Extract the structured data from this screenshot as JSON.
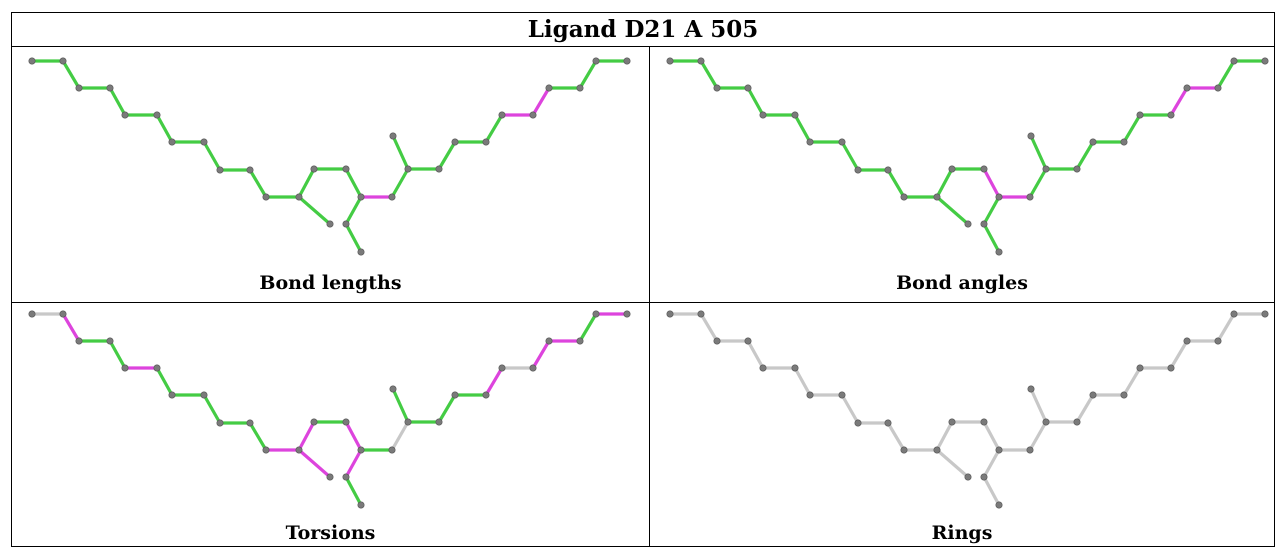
{
  "title": "Ligand D21 A 505",
  "panels": [
    {
      "caption": "Bond lengths",
      "colors": [
        "g",
        "g",
        "g",
        "g",
        "g",
        "g",
        "g",
        "g",
        "g",
        "g",
        "g",
        "g",
        "g",
        "g",
        "m",
        "g",
        "g",
        "g",
        "g",
        "g",
        "m",
        "m",
        "g",
        "g",
        "g",
        "g",
        "g",
        "g",
        "g",
        "g",
        "g",
        "g"
      ]
    },
    {
      "caption": "Bond angles",
      "colors": [
        "g",
        "g",
        "g",
        "g",
        "g",
        "g",
        "g",
        "g",
        "g",
        "g",
        "g",
        "g",
        "g",
        "m",
        "m",
        "g",
        "g",
        "g",
        "g",
        "g",
        "g",
        "m",
        "m",
        "g",
        "g",
        "g",
        "g",
        "g",
        "g",
        "g",
        "m",
        "m"
      ]
    },
    {
      "caption": "Torsions",
      "colors": [
        "n",
        "m",
        "g",
        "g",
        "m",
        "g",
        "g",
        "g",
        "g",
        "g",
        "m",
        "m",
        "g",
        "m",
        "g",
        "n",
        "g",
        "g",
        "g",
        "m",
        "n",
        "m",
        "m",
        "g",
        "m",
        "m",
        "g",
        "m",
        "g",
        "m",
        "g",
        "n"
      ]
    },
    {
      "caption": "Rings",
      "colors": [
        "n",
        "n",
        "n",
        "n",
        "n",
        "n",
        "n",
        "n",
        "n",
        "n",
        "n",
        "n",
        "n",
        "n",
        "n",
        "n",
        "n",
        "n",
        "n",
        "n",
        "n",
        "n",
        "n",
        "n",
        "n",
        "n",
        "n",
        "n",
        "n",
        "n",
        "n",
        "n"
      ]
    }
  ],
  "palette": {
    "g": "#44cc44",
    "m": "#dd44dd",
    "n": "#c8c8c8",
    "atom": "#7a7a7a"
  }
}
